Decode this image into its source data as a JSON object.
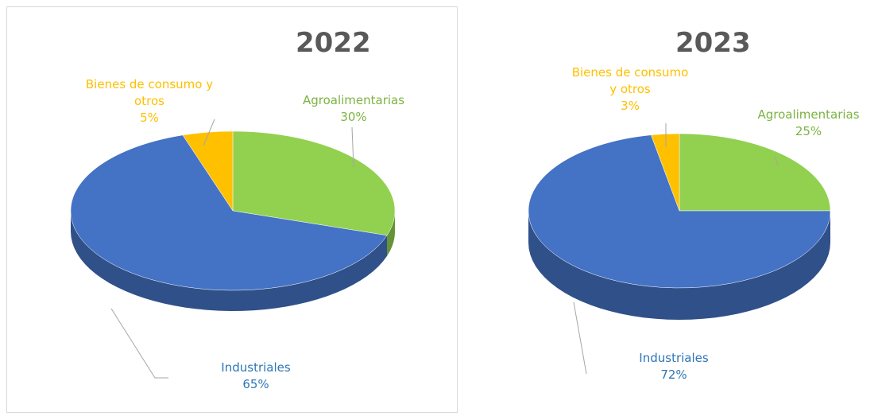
{
  "chart_data": [
    {
      "type": "pie",
      "title": "2022",
      "categories": [
        "Agroalimentarias",
        "Industriales",
        "Bienes de consumo y otros"
      ],
      "values": [
        30,
        65,
        5
      ],
      "value_labels": [
        "30%",
        "65%",
        "5%"
      ],
      "colors": [
        "#92d050",
        "#4472c4",
        "#ffc000"
      ]
    },
    {
      "type": "pie",
      "title": "2023",
      "categories": [
        "Agroalimentarias",
        "Industriales",
        "Bienes de consumo y otros"
      ],
      "values": [
        25,
        72,
        3
      ],
      "value_labels": [
        "25%",
        "72%",
        "3%"
      ],
      "colors": [
        "#92d050",
        "#4472c4",
        "#ffc000"
      ]
    }
  ]
}
